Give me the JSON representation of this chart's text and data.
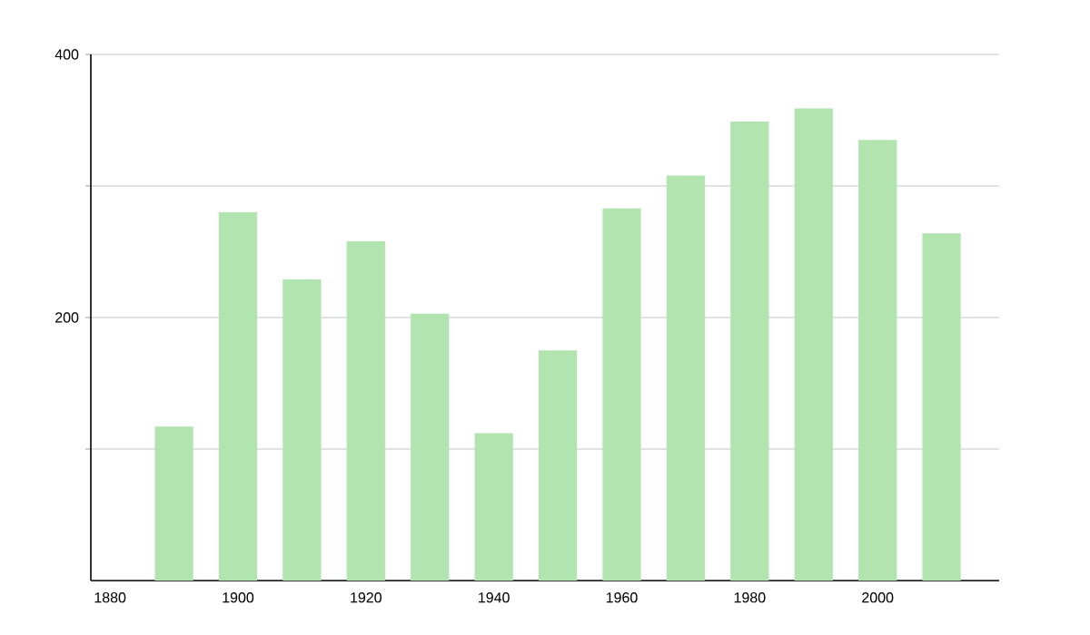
{
  "chart_data": {
    "type": "bar",
    "x": [
      1890,
      1900,
      1910,
      1920,
      1930,
      1940,
      1950,
      1960,
      1970,
      1980,
      1990,
      2000,
      2010
    ],
    "values": [
      117,
      280,
      229,
      258,
      203,
      112,
      175,
      283,
      308,
      349,
      359,
      335,
      264
    ],
    "color": "#b2e4b0",
    "xlim": [
      1877,
      2019
    ],
    "xticks": [
      1880,
      1900,
      1920,
      1940,
      1960,
      1980,
      2000
    ],
    "ylim": [
      0,
      400
    ],
    "yticks": [
      {
        "value": 100,
        "label": null
      },
      200,
      {
        "value": 300,
        "label": null
      },
      400
    ],
    "grid": "y"
  }
}
